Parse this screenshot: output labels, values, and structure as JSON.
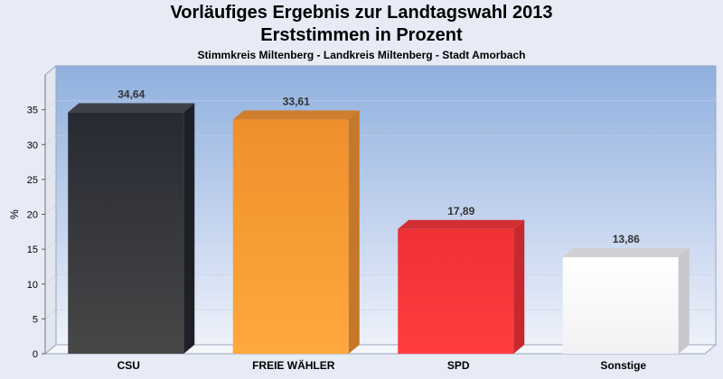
{
  "chart_data": {
    "type": "bar",
    "title": "Vorläufiges Ergebnis zur Landtagswahl 2013",
    "subtitle": "Erststimmen in Prozent",
    "subtitle2": "Stimmkreis Miltenberg - Landkreis Miltenberg - Stadt Amorbach",
    "ylabel": "%",
    "ylim": [
      0,
      40
    ],
    "yticks": [
      0,
      5,
      10,
      15,
      20,
      25,
      30,
      35
    ],
    "categories": [
      "CSU",
      "FREIE WÄHLER",
      "SPD",
      "Sonstige"
    ],
    "values": [
      34.64,
      33.61,
      17.89,
      13.86
    ],
    "value_labels": [
      "34,64",
      "33,61",
      "17,89",
      "13,86"
    ],
    "colors": [
      "#35373e",
      "#f3952f",
      "#f03236",
      "#f4f4f6"
    ],
    "grid": true
  }
}
